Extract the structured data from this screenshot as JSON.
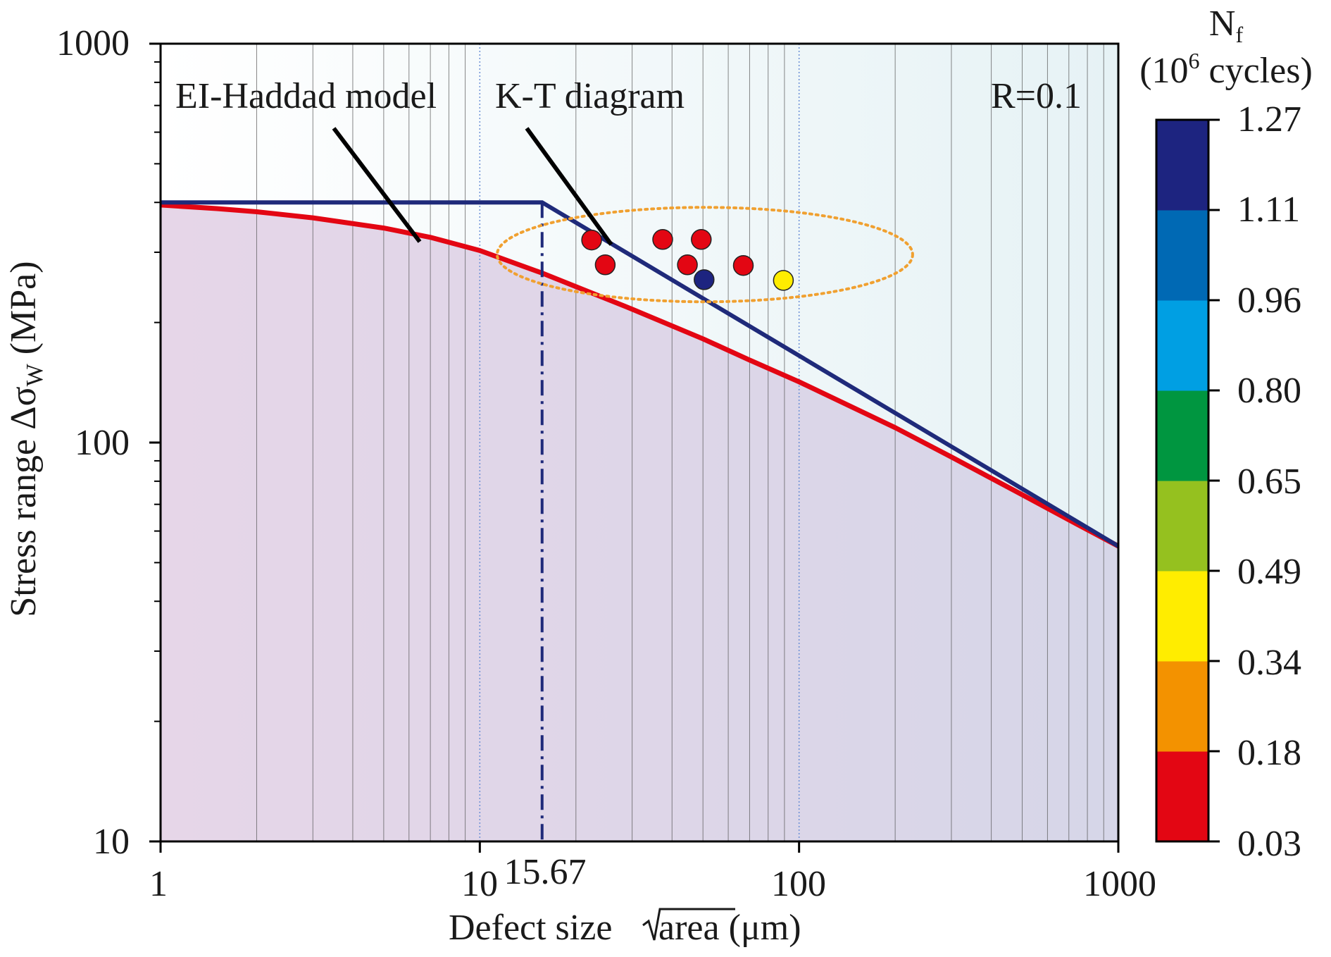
{
  "chart_data": {
    "type": "scatter",
    "xlabel_prefix": "Defect size ",
    "xlabel_radicand": "area",
    "xlabel_unit": " (μm)",
    "ylabel_prefix": "Stress range Δσ",
    "ylabel_sub": "W",
    "ylabel_unit": " (MPa)",
    "x_scale": "log",
    "y_scale": "log",
    "xlim": [
      1,
      1000
    ],
    "ylim": [
      10,
      1000
    ],
    "x_ticks": [
      "1",
      "10",
      "100",
      "1000"
    ],
    "x_tick_values": [
      1,
      10,
      100,
      1000
    ],
    "y_ticks": [
      "10",
      "100",
      "1000"
    ],
    "y_tick_values": [
      10,
      100,
      1000
    ],
    "marker_tick_label": "15.67",
    "marker_tick_value": 15.67,
    "grid": "vertical minor lines",
    "annotations": {
      "el_haddad": "EI-Haddad model",
      "kt": "K-T diagram",
      "ratio": "R=0.1"
    },
    "series": [
      {
        "name": "EI-Haddad model",
        "kind": "curve",
        "color": "#e30613",
        "x": [
          1,
          1.5,
          2,
          3,
          5,
          7,
          10,
          15.67,
          20,
          30,
          50,
          70,
          100,
          200,
          300,
          500,
          700,
          1000
        ],
        "y": [
          394,
          386,
          379,
          366,
          345,
          327,
          303,
          266,
          246,
          216,
          182,
          161,
          142,
          109,
          92,
          74,
          64,
          55
        ]
      },
      {
        "name": "K-T diagram",
        "kind": "line",
        "color": "#1f2a7a",
        "x": [
          1,
          15.67,
          1000
        ],
        "y": [
          400,
          400,
          55
        ]
      }
    ],
    "points": [
      {
        "x": 22.4,
        "y": 322,
        "nf": 0.1
      },
      {
        "x": 24.7,
        "y": 279,
        "nf": 0.1
      },
      {
        "x": 37.4,
        "y": 323,
        "nf": 0.1
      },
      {
        "x": 44.7,
        "y": 279,
        "nf": 0.1
      },
      {
        "x": 49.4,
        "y": 323,
        "nf": 0.1
      },
      {
        "x": 66.9,
        "y": 278,
        "nf": 0.1
      },
      {
        "x": 50.4,
        "y": 256,
        "nf": 1.2
      },
      {
        "x": 89.3,
        "y": 255,
        "nf": 0.42
      }
    ],
    "ellipse": {
      "cx": 50.7,
      "cy": 296,
      "color": "#f0a030"
    },
    "colorbar": {
      "title_main": "N",
      "title_sub": "f",
      "units_prefix": "(10",
      "units_sup": "6",
      "units_suffix": " cycles)",
      "labels": [
        "1.27",
        "1.11",
        "0.96",
        "0.80",
        "0.65",
        "0.49",
        "0.34",
        "0.18",
        "0.03"
      ],
      "colors": [
        "#e30613",
        "#f39200",
        "#ffed00",
        "#95c11f",
        "#009640",
        "#009fe3",
        "#0069b4",
        "#1d2480"
      ]
    },
    "region_colors": {
      "below": "#e2d4e6",
      "above": "#eef6f8"
    }
  }
}
